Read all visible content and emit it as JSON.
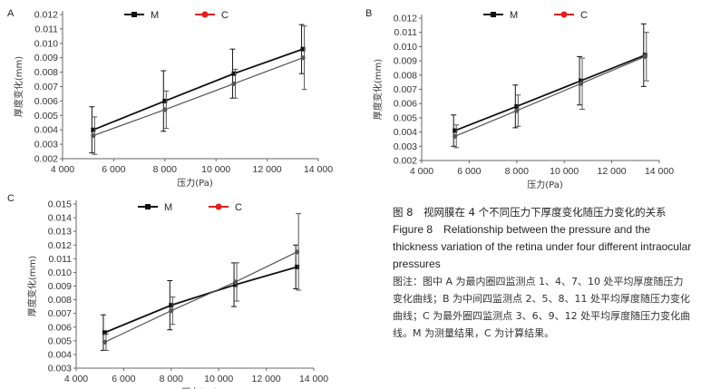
{
  "chart_data": [
    {
      "panel": "A",
      "type": "line",
      "xlabel": "压力(Pa)",
      "ylabel": "厚度变化(mm)",
      "x_ticks": [
        "4 000",
        "6 000",
        "8 000",
        "10 000",
        "12 000",
        "14 000"
      ],
      "y_ticks": [
        "0.002",
        "0.003",
        "0.004",
        "0.005",
        "0.006",
        "0.007",
        "0.008",
        "0.009",
        "0.010",
        "0.011",
        "0.012"
      ],
      "xlim": [
        4000,
        14000
      ],
      "ylim": [
        0.002,
        0.012
      ],
      "legend_position": "top",
      "series": [
        {
          "name": "M",
          "color": "#111111",
          "x": [
            5200,
            8000,
            10700,
            13400
          ],
          "y": [
            0.004,
            0.006,
            0.0079,
            0.0096
          ],
          "err": [
            0.0016,
            0.0021,
            0.0017,
            0.0017
          ]
        },
        {
          "name": "C",
          "color": "#555555",
          "x": [
            5200,
            8000,
            10700,
            13400
          ],
          "y": [
            0.0036,
            0.0054,
            0.0072,
            0.009
          ],
          "err": [
            0.0013,
            0.0013,
            0.001,
            0.0022
          ]
        }
      ]
    },
    {
      "panel": "B",
      "type": "line",
      "xlabel": "压力(Pa)",
      "ylabel": "厚度变化(mm)",
      "x_ticks": [
        "4 000",
        "6 000",
        "8 000",
        "10 000",
        "12 000",
        "14 000"
      ],
      "y_ticks": [
        "0.002",
        "0.003",
        "0.004",
        "0.005",
        "0.006",
        "0.007",
        "0.008",
        "0.009",
        "0.010",
        "0.011",
        "0.012"
      ],
      "xlim": [
        4000,
        14000
      ],
      "ylim": [
        0.002,
        0.012
      ],
      "legend_position": "top",
      "series": [
        {
          "name": "M",
          "color": "#111111",
          "x": [
            5400,
            8000,
            10700,
            13400
          ],
          "y": [
            0.0041,
            0.0058,
            0.0076,
            0.0094
          ],
          "err": [
            0.0011,
            0.0015,
            0.0017,
            0.0022
          ]
        },
        {
          "name": "C",
          "color": "#555555",
          "x": [
            5400,
            8000,
            10700,
            13400
          ],
          "y": [
            0.0037,
            0.0055,
            0.0074,
            0.0093
          ],
          "err": [
            0.0008,
            0.0011,
            0.0018,
            0.0017
          ]
        }
      ]
    },
    {
      "panel": "C",
      "type": "line",
      "xlabel": "压力(Pa)",
      "ylabel": "厚度变化(mm)",
      "x_ticks": [
        "4 000",
        "6 000",
        "8 000",
        "10 000",
        "12 000",
        "14 000"
      ],
      "y_ticks": [
        "0.003",
        "0.004",
        "0.005",
        "0.006",
        "0.007",
        "0.008",
        "0.009",
        "0.010",
        "0.011",
        "0.012",
        "0.013",
        "0.014",
        "0.015"
      ],
      "xlim": [
        4000,
        14000
      ],
      "ylim": [
        0.003,
        0.015
      ],
      "legend_position": "top",
      "series": [
        {
          "name": "M",
          "color": "#111111",
          "x": [
            5200,
            8000,
            10700,
            13300
          ],
          "y": [
            0.0056,
            0.0076,
            0.0091,
            0.0104
          ],
          "err": [
            0.0013,
            0.0018,
            0.0016,
            0.0016
          ]
        },
        {
          "name": "C",
          "color": "#555555",
          "x": [
            5200,
            8000,
            10700,
            13300
          ],
          "y": [
            0.0049,
            0.0072,
            0.0093,
            0.0115
          ],
          "err": [
            0.0006,
            0.001,
            0.0014,
            0.0028
          ]
        }
      ]
    }
  ],
  "caption": {
    "zh_title": "图 8　视网膜在 4 个不同压力下厚度变化随压力变化的关系",
    "en_title": "Figure 8　Relationship between the pressure and the thickness variation of the retina under four different intraocular pressures",
    "note": "图注：图中 A 为最内圈四监测点 1、4、7、10 处平均厚度随压力变化曲线；B 为中间四监测点 2、5、8、11 处平均厚度随压力变化曲线；C 为最外圈四监测点 3、6、9、12 处平均厚度随压力变化曲线。M 为测量结果，C 为计算结果。"
  }
}
